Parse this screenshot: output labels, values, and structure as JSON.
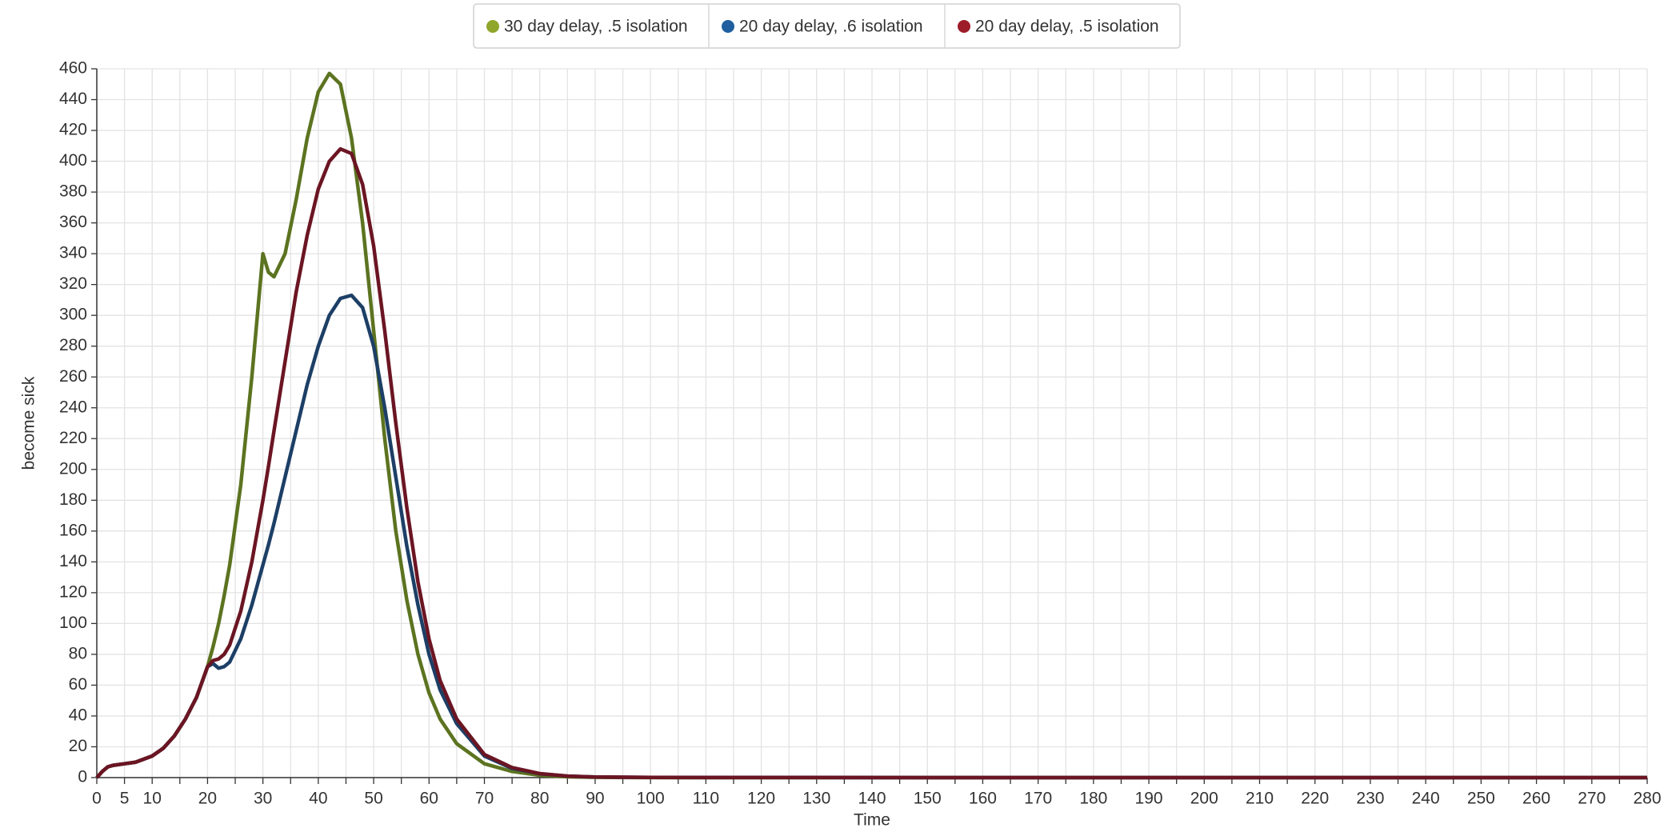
{
  "chart_data": {
    "type": "line",
    "x_label": "Time",
    "y_label": "become sick",
    "x": [
      0,
      1,
      2,
      3,
      5,
      7,
      10,
      12,
      14,
      16,
      18,
      20,
      21,
      22,
      23,
      24,
      26,
      28,
      30,
      31,
      32,
      34,
      36,
      38,
      40,
      42,
      44,
      46,
      48,
      50,
      52,
      54,
      56,
      58,
      60,
      62,
      65,
      70,
      75,
      80,
      85,
      90,
      100,
      150,
      200,
      250,
      280
    ],
    "series": [
      {
        "name": "30 day delay, .5 isolation",
        "color": "#5c7320",
        "marker_color": "#8fa62a",
        "values": [
          0,
          4,
          7,
          8,
          9,
          10,
          14,
          19,
          27,
          38,
          52,
          72,
          85,
          100,
          118,
          138,
          190,
          260,
          340,
          328,
          325,
          340,
          375,
          415,
          445,
          457,
          450,
          415,
          360,
          290,
          220,
          160,
          115,
          80,
          55,
          38,
          22,
          9,
          4,
          1.5,
          0.5,
          0.2,
          0,
          0,
          0,
          0,
          0
        ]
      },
      {
        "name": "20 day delay, .6 isolation",
        "color": "#1d3f66",
        "marker_color": "#1f5fa0",
        "values": [
          0,
          4,
          7,
          8,
          9,
          10,
          14,
          19,
          27,
          38,
          52,
          72,
          74,
          71,
          72,
          75,
          90,
          112,
          138,
          151,
          165,
          195,
          225,
          255,
          280,
          300,
          311,
          313,
          305,
          280,
          240,
          195,
          150,
          112,
          80,
          57,
          35,
          14,
          6,
          2.5,
          1,
          0.4,
          0.1,
          0,
          0,
          0,
          0
        ]
      },
      {
        "name": "20 day delay, .5 isolation",
        "color": "#6b1523",
        "marker_color": "#9e1d2a",
        "values": [
          0,
          4,
          7,
          8,
          9,
          10,
          14,
          19,
          27,
          38,
          52,
          72,
          76,
          77,
          80,
          86,
          108,
          140,
          180,
          202,
          225,
          270,
          315,
          352,
          382,
          400,
          408,
          405,
          385,
          345,
          290,
          230,
          175,
          127,
          90,
          63,
          38,
          15,
          6.5,
          2.6,
          1,
          0.4,
          0.1,
          0,
          0,
          0,
          0
        ]
      }
    ],
    "xlim": [
      0,
      280
    ],
    "ylim": [
      0,
      460
    ],
    "xticks": [
      0,
      5,
      10,
      20,
      30,
      40,
      50,
      60,
      70,
      80,
      90,
      100,
      110,
      120,
      130,
      140,
      150,
      160,
      170,
      180,
      190,
      200,
      210,
      220,
      230,
      240,
      250,
      260,
      270,
      280
    ],
    "x_minor_ticks": [
      15,
      25,
      35,
      45,
      55,
      65,
      75,
      85,
      95,
      105,
      115,
      125,
      135,
      145,
      155,
      165,
      175,
      185,
      195,
      205,
      215,
      225,
      235,
      245,
      255,
      265,
      275
    ],
    "yticks": [
      0,
      20,
      40,
      60,
      80,
      100,
      120,
      140,
      160,
      180,
      200,
      220,
      240,
      260,
      280,
      300,
      320,
      340,
      360,
      380,
      400,
      420,
      440,
      460
    ],
    "grid": true,
    "legend": "top"
  }
}
